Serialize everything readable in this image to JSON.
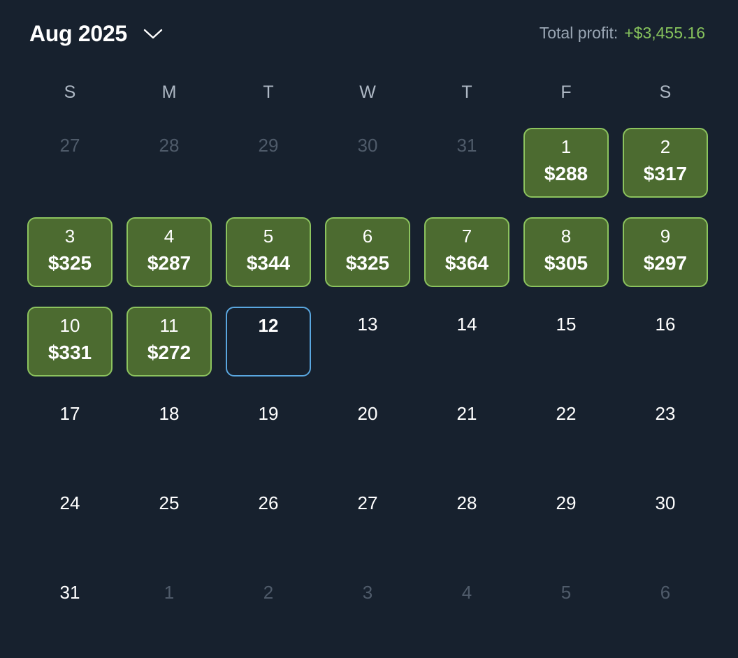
{
  "header": {
    "month_label": "Aug 2025",
    "total_profit_label": "Total profit:",
    "total_profit_value": "+$3,455.16"
  },
  "colors": {
    "background": "#17212e",
    "profit_fill": "#4c6b30",
    "profit_border": "#8cc35e",
    "today_border": "#5aa7e0",
    "profit_text": "#86c25c"
  },
  "weekdays": [
    "S",
    "M",
    "T",
    "W",
    "T",
    "F",
    "S"
  ],
  "days": [
    {
      "day": "27",
      "muted": true
    },
    {
      "day": "28",
      "muted": true
    },
    {
      "day": "29",
      "muted": true
    },
    {
      "day": "30",
      "muted": true
    },
    {
      "day": "31",
      "muted": true
    },
    {
      "day": "1",
      "amount": "$288"
    },
    {
      "day": "2",
      "amount": "$317"
    },
    {
      "day": "3",
      "amount": "$325"
    },
    {
      "day": "4",
      "amount": "$287"
    },
    {
      "day": "5",
      "amount": "$344"
    },
    {
      "day": "6",
      "amount": "$325"
    },
    {
      "day": "7",
      "amount": "$364"
    },
    {
      "day": "8",
      "amount": "$305"
    },
    {
      "day": "9",
      "amount": "$297"
    },
    {
      "day": "10",
      "amount": "$331"
    },
    {
      "day": "11",
      "amount": "$272"
    },
    {
      "day": "12",
      "today": true
    },
    {
      "day": "13"
    },
    {
      "day": "14"
    },
    {
      "day": "15"
    },
    {
      "day": "16"
    },
    {
      "day": "17"
    },
    {
      "day": "18"
    },
    {
      "day": "19"
    },
    {
      "day": "20"
    },
    {
      "day": "21"
    },
    {
      "day": "22"
    },
    {
      "day": "23"
    },
    {
      "day": "24"
    },
    {
      "day": "25"
    },
    {
      "day": "26"
    },
    {
      "day": "27"
    },
    {
      "day": "28"
    },
    {
      "day": "29"
    },
    {
      "day": "30"
    },
    {
      "day": "31"
    },
    {
      "day": "1",
      "muted": true
    },
    {
      "day": "2",
      "muted": true
    },
    {
      "day": "3",
      "muted": true
    },
    {
      "day": "4",
      "muted": true
    },
    {
      "day": "5",
      "muted": true
    },
    {
      "day": "6",
      "muted": true
    }
  ]
}
